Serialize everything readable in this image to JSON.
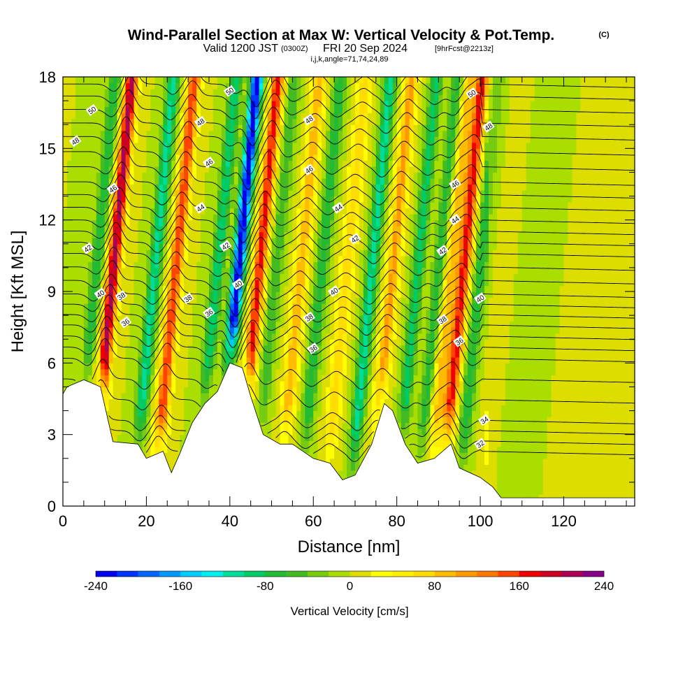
{
  "header": {
    "title": "Wind-Parallel Section at Max W: Vertical Velocity & Pot.Temp.",
    "copyright": "(C)",
    "valid_prefix": "Valid 1200 JST",
    "valid_utc": "(0300Z)",
    "valid_date": "FRI 20 Sep 2024",
    "forecast": "[9hrFcst@2213z]",
    "indices": "i,j,k,angle=71,74,24,89"
  },
  "chart_data": {
    "type": "heatmap",
    "xlabel": "Distance [nm]",
    "ylabel": "Height [Kft MSL]",
    "xlim": [
      0,
      137
    ],
    "ylim": [
      0,
      18
    ],
    "x_ticks": [
      0,
      20,
      40,
      60,
      80,
      100,
      120
    ],
    "y_ticks": [
      0,
      3,
      6,
      9,
      12,
      15,
      18
    ],
    "colorbar": {
      "title": "Vertical Velocity [cm/s]",
      "min": -240,
      "max": 240,
      "step": 20,
      "tick_labels": [
        "-240",
        "-160",
        "-80",
        "0",
        "80",
        "160",
        "240"
      ],
      "colors": [
        "#0000ee",
        "#0033ff",
        "#0066ff",
        "#0099ff",
        "#00ccff",
        "#00eeee",
        "#00dd99",
        "#00cc66",
        "#22bb33",
        "#44bb22",
        "#77cc11",
        "#aadd00",
        "#dddd00",
        "#ffff00",
        "#ffee00",
        "#ffdd00",
        "#ffbb00",
        "#ff9900",
        "#ff7700",
        "#ff4400",
        "#ee0000",
        "#cc0022",
        "#aa0055",
        "#880088"
      ]
    },
    "updraft_axes": [
      {
        "x": 11,
        "w": 210
      },
      {
        "x": 26,
        "w": 160
      },
      {
        "x": 46,
        "w": 170
      },
      {
        "x": 56,
        "w": 100
      },
      {
        "x": 67,
        "w": 80
      },
      {
        "x": 78,
        "w": 110
      },
      {
        "x": 92,
        "w": 90
      },
      {
        "x": 95,
        "w": 170
      },
      {
        "x": 105,
        "w": 40
      }
    ],
    "downdraft_axes": [
      {
        "x": 7,
        "w": -80
      },
      {
        "x": 21,
        "w": -110
      },
      {
        "x": 36,
        "w": -100
      },
      {
        "x": 41,
        "w": -240
      },
      {
        "x": 50,
        "w": -60
      },
      {
        "x": 61,
        "w": -80
      },
      {
        "x": 73,
        "w": -110
      },
      {
        "x": 84,
        "w": -90
      },
      {
        "x": 89,
        "w": -70
      },
      {
        "x": 99,
        "w": -80
      },
      {
        "x": 110,
        "w": -40
      }
    ],
    "terrain": [
      {
        "x": 0,
        "z": 4.7
      },
      {
        "x": 1,
        "z": 5.0
      },
      {
        "x": 5,
        "z": 5.3
      },
      {
        "x": 9,
        "z": 5.0
      },
      {
        "x": 12,
        "z": 2.7
      },
      {
        "x": 18,
        "z": 2.6
      },
      {
        "x": 20,
        "z": 2.0
      },
      {
        "x": 24,
        "z": 2.3
      },
      {
        "x": 26,
        "z": 1.4
      },
      {
        "x": 28,
        "z": 2.2
      },
      {
        "x": 31,
        "z": 3.5
      },
      {
        "x": 34,
        "z": 4.3
      },
      {
        "x": 37,
        "z": 4.8
      },
      {
        "x": 40,
        "z": 6.0
      },
      {
        "x": 43,
        "z": 5.8
      },
      {
        "x": 45,
        "z": 4.6
      },
      {
        "x": 48,
        "z": 3.0
      },
      {
        "x": 52,
        "z": 2.6
      },
      {
        "x": 55,
        "z": 2.6
      },
      {
        "x": 60,
        "z": 2.0
      },
      {
        "x": 64,
        "z": 1.8
      },
      {
        "x": 67,
        "z": 1.1
      },
      {
        "x": 70,
        "z": 1.3
      },
      {
        "x": 74,
        "z": 2.6
      },
      {
        "x": 77,
        "z": 4.3
      },
      {
        "x": 79,
        "z": 4.0
      },
      {
        "x": 82,
        "z": 2.6
      },
      {
        "x": 85,
        "z": 1.8
      },
      {
        "x": 89,
        "z": 2.0
      },
      {
        "x": 93,
        "z": 2.6
      },
      {
        "x": 95,
        "z": 1.6
      },
      {
        "x": 100,
        "z": 1.2
      },
      {
        "x": 103,
        "z": 0.8
      },
      {
        "x": 105,
        "z": 0.35
      },
      {
        "x": 137,
        "z": 0.35
      }
    ],
    "theta_contours": [
      {
        "value": "32",
        "base": 2.3
      },
      {
        "value": "34",
        "base": 3.6
      },
      {
        "value": "36",
        "base": 6.2
      },
      {
        "value": "38",
        "base": 7.6
      },
      {
        "value": "40",
        "base": 8.9
      },
      {
        "value": "42",
        "base": 10.6
      },
      {
        "value": "44",
        "base": 12.0
      },
      {
        "value": "46",
        "base": 13.6
      },
      {
        "value": "48",
        "base": 15.5
      },
      {
        "value": "50",
        "base": 17.2
      }
    ],
    "contour_labels": [
      {
        "text": "50",
        "x": 7,
        "y": 16.6
      },
      {
        "text": "48",
        "x": 3,
        "y": 15.3
      },
      {
        "text": "46",
        "x": 12,
        "y": 13.3
      },
      {
        "text": "42",
        "x": 6,
        "y": 10.8
      },
      {
        "text": "40",
        "x": 9,
        "y": 8.9
      },
      {
        "text": "38",
        "x": 14,
        "y": 8.8
      },
      {
        "text": "36",
        "x": 15,
        "y": 7.7
      },
      {
        "text": "48",
        "x": 33,
        "y": 16.1
      },
      {
        "text": "46",
        "x": 35,
        "y": 14.4
      },
      {
        "text": "44",
        "x": 33,
        "y": 12.5
      },
      {
        "text": "42",
        "x": 39,
        "y": 10.9
      },
      {
        "text": "38",
        "x": 30,
        "y": 8.7
      },
      {
        "text": "36",
        "x": 35,
        "y": 8.1
      },
      {
        "text": "50",
        "x": 40,
        "y": 17.4
      },
      {
        "text": "40",
        "x": 42,
        "y": 9.3
      },
      {
        "text": "48",
        "x": 59,
        "y": 16.2
      },
      {
        "text": "46",
        "x": 59,
        "y": 14.1
      },
      {
        "text": "44",
        "x": 66,
        "y": 12.5
      },
      {
        "text": "42",
        "x": 70,
        "y": 11.2
      },
      {
        "text": "40",
        "x": 65,
        "y": 9.0
      },
      {
        "text": "38",
        "x": 59,
        "y": 7.9
      },
      {
        "text": "36",
        "x": 60,
        "y": 6.6
      },
      {
        "text": "50",
        "x": 98,
        "y": 17.3
      },
      {
        "text": "48",
        "x": 102,
        "y": 15.9
      },
      {
        "text": "46",
        "x": 94,
        "y": 13.5
      },
      {
        "text": "44",
        "x": 94,
        "y": 12.0
      },
      {
        "text": "42",
        "x": 91,
        "y": 10.7
      },
      {
        "text": "40",
        "x": 100,
        "y": 8.7
      },
      {
        "text": "38",
        "x": 91,
        "y": 7.8
      },
      {
        "text": "36",
        "x": 95,
        "y": 6.9
      },
      {
        "text": "34",
        "x": 101,
        "y": 3.6
      },
      {
        "text": "32",
        "x": 100,
        "y": 2.6
      }
    ]
  }
}
